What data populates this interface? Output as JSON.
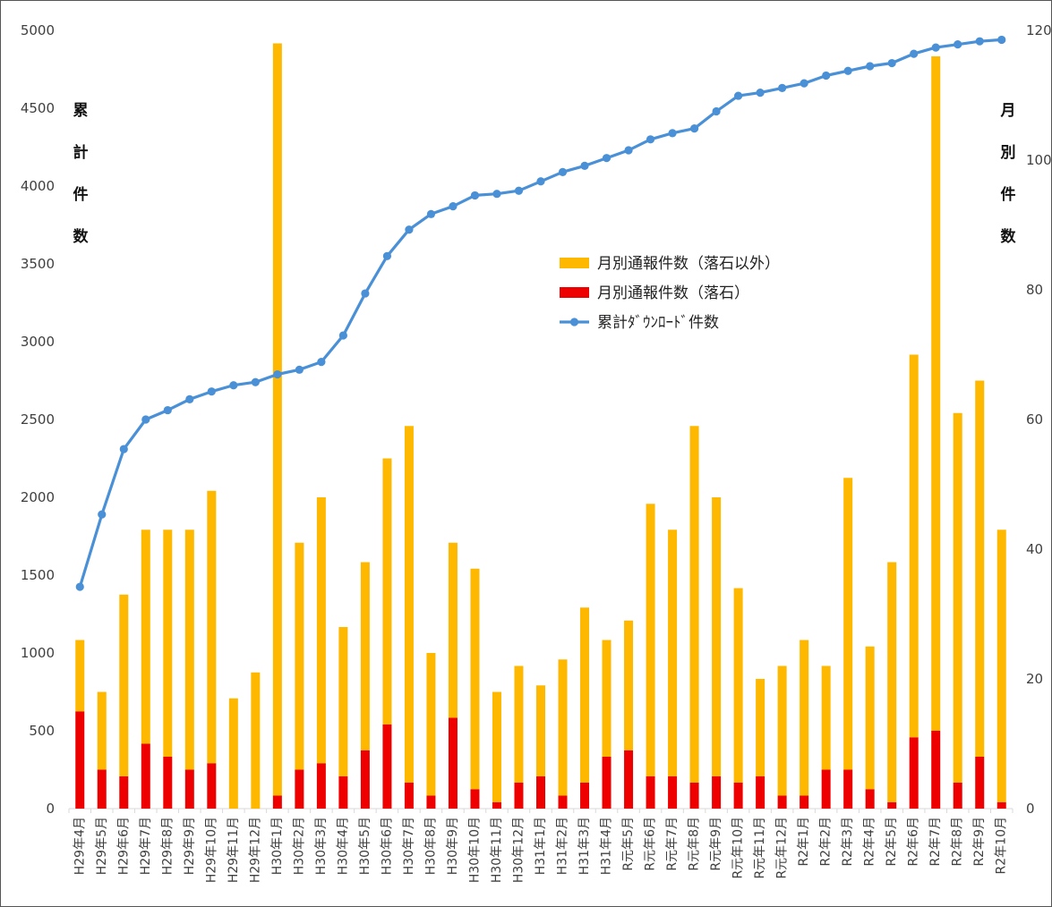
{
  "chart_data": {
    "type": "bar",
    "stacked": true,
    "dual_axis": true,
    "categories": [
      "H29年4月",
      "H29年5月",
      "H29年6月",
      "H29年7月",
      "H29年8月",
      "H29年9月",
      "H29年10月",
      "H29年11月",
      "H29年12月",
      "H30年1月",
      "H30年2月",
      "H30年3月",
      "H30年4月",
      "H30年5月",
      "H30年6月",
      "H30年7月",
      "H30年8月",
      "H30年9月",
      "H30年10月",
      "H30年11月",
      "H30年12月",
      "H31年1月",
      "H31年2月",
      "H31年3月",
      "H31年4月",
      "R元年5月",
      "R元年6月",
      "R元年7月",
      "R元年8月",
      "R元年9月",
      "R元年10月",
      "R元年11月",
      "R元年12月",
      "R2年1月",
      "R2年2月",
      "R2年3月",
      "R2年4月",
      "R2年5月",
      "R2年6月",
      "R2年7月",
      "R2年8月",
      "R2年9月",
      "R2年10月"
    ],
    "series": [
      {
        "name": "月別通報件数（落石）",
        "type": "bar",
        "axis": "right",
        "color": "#ee0000",
        "values": [
          15,
          6,
          5,
          10,
          8,
          6,
          7,
          0,
          0,
          2,
          6,
          7,
          5,
          9,
          13,
          4,
          2,
          14,
          3,
          1,
          4,
          5,
          2,
          4,
          8,
          9,
          5,
          5,
          4,
          5,
          4,
          5,
          2,
          2,
          6,
          6,
          3,
          1,
          11,
          12,
          4,
          8,
          1
        ]
      },
      {
        "name": "月別通報件数（落石以外）",
        "type": "bar",
        "axis": "right",
        "color": "#ffb800",
        "values": [
          11,
          12,
          28,
          33,
          35,
          37,
          42,
          17,
          21,
          116,
          35,
          41,
          23,
          29,
          41,
          55,
          22,
          27,
          34,
          17,
          18,
          14,
          21,
          27,
          18,
          20,
          42,
          38,
          55,
          43,
          30,
          15,
          20,
          24,
          16,
          45,
          22,
          37,
          59,
          104,
          57,
          58,
          42
        ]
      },
      {
        "name": "累計ﾀﾞｳﾝﾛｰﾄﾞ件数",
        "type": "line",
        "axis": "left",
        "color": "#4a90d6",
        "values": [
          1425,
          1890,
          2310,
          2500,
          2560,
          2630,
          2680,
          2720,
          2740,
          2790,
          2820,
          2870,
          3040,
          3310,
          3550,
          3720,
          3820,
          3870,
          3940,
          3950,
          3970,
          4030,
          4090,
          4130,
          4180,
          4230,
          4300,
          4340,
          4370,
          4480,
          4580,
          4600,
          4630,
          4660,
          4710,
          4740,
          4770,
          4790,
          4850,
          4890,
          4910,
          4930,
          4940
        ]
      }
    ],
    "y_left": {
      "label": "累計件数",
      "ylim": [
        0,
        5000
      ],
      "ticks": [
        "0",
        "500",
        "1000",
        "1500",
        "2000",
        "2500",
        "3000",
        "3500",
        "4000",
        "4500",
        "5000"
      ]
    },
    "y_right": {
      "label": "月別件数",
      "ylim": [
        0,
        120
      ],
      "ticks": [
        "0",
        "20",
        "40",
        "60",
        "80",
        "100",
        "120"
      ]
    },
    "grid": false,
    "legend_position": "center-right"
  }
}
